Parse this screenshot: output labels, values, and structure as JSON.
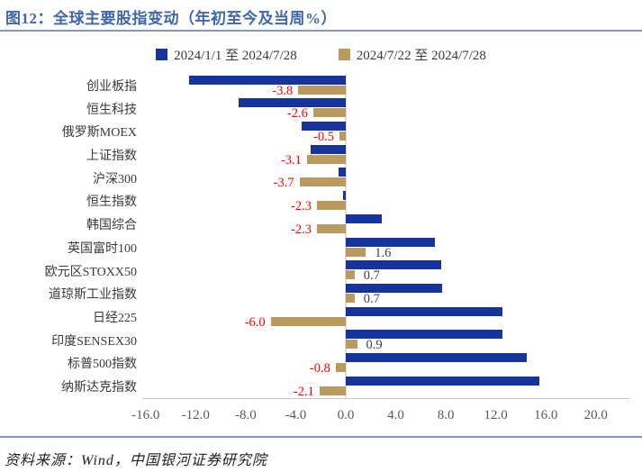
{
  "title": "图12：全球主要股指变动（年初至今及当周%）",
  "legend": {
    "items": [
      {
        "label": "2024/1/1 至 2024/7/28",
        "color": "#16349B"
      },
      {
        "label": "2024/7/22 至 2024/7/28",
        "color": "#BA9A5F"
      }
    ]
  },
  "source": "资料来源：Wind，中国银河证券研究院",
  "colors": {
    "series_ytd": "#16349B",
    "series_week": "#BA9A5F",
    "negative_label": "#FF0000",
    "positive_label": "#404040",
    "accent_rule": "#7C99C6",
    "axis": "#C9C9C9",
    "zero_line": "#DCDCDC",
    "title": "#3F66AE"
  },
  "chart_data": {
    "type": "bar",
    "orientation": "horizontal",
    "title": "全球主要股指变动（年初至今及当周%）",
    "xlim": [
      -16,
      20
    ],
    "grid": false,
    "legend_position": "top-center",
    "xticks": [
      "-16.0",
      "-12.0",
      "-8.0",
      "-4.0",
      "0.0",
      "4.0",
      "8.0",
      "12.0",
      "16.0",
      "20.0"
    ],
    "xtick_values": [
      -16,
      -12,
      -8,
      -4,
      0,
      4,
      8,
      12,
      16,
      20
    ],
    "categories": [
      "创业板指",
      "恒生科技",
      "俄罗斯MOEX",
      "上证指数",
      "沪深300",
      "恒生指数",
      "韩国综合",
      "英国富时100",
      "欧元区STOXX50",
      "道琼斯工业指数",
      "日经225",
      "印度SENSEX30",
      "标普500指数",
      "纳斯达克指数"
    ],
    "series": [
      {
        "name": "2024/1/1 至 2024/7/28",
        "color": "#16349B",
        "values": [
          -12.5,
          -8.6,
          -3.5,
          -2.8,
          -0.6,
          -0.2,
          2.9,
          7.1,
          7.6,
          7.7,
          12.5,
          12.5,
          14.5,
          15.5
        ],
        "labeled": false
      },
      {
        "name": "2024/7/22 至 2024/7/28",
        "color": "#BA9A5F",
        "values": [
          -3.8,
          -2.6,
          -0.5,
          -3.1,
          -3.7,
          -2.3,
          -2.3,
          1.6,
          0.7,
          0.7,
          -6.0,
          0.9,
          -0.8,
          -2.1
        ],
        "labeled": true,
        "labels": [
          "-3.8",
          "-2.6",
          "-0.5",
          "-3.1",
          "-3.7",
          "-2.3",
          "-2.3",
          "1.6",
          "0.7",
          "0.7",
          "-6.0",
          "0.9",
          "-0.8",
          "-2.1"
        ]
      }
    ]
  }
}
